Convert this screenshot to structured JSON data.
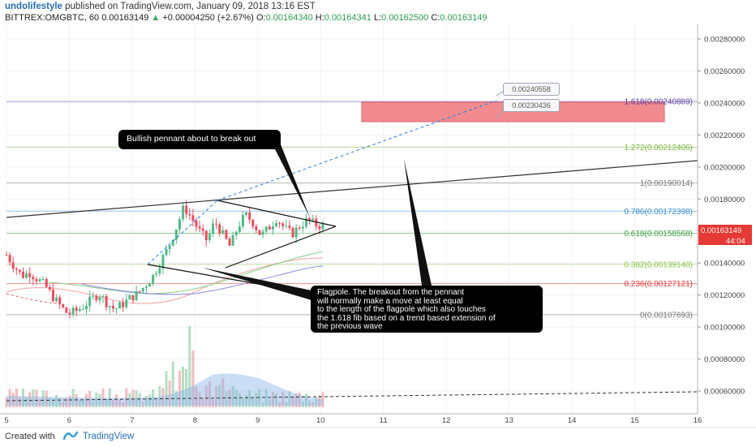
{
  "header": {
    "author": "undolifestyle",
    "published": "published on TradingView.com, January 09, 2018 13:16 EST",
    "symbol": "BITTREX:OMGBTC, 60",
    "price": "0.00163149",
    "change": "+0.00004250 (+2.67%)",
    "o_label": "O:",
    "o_value": "0.00164340",
    "h_label": "H:",
    "h_value": "0.00164341",
    "l_label": "L:",
    "l_value": "0.00162500",
    "c_label": "C:",
    "c_value": "0.00163149"
  },
  "price_axis": {
    "ticks": [
      "0.00280000",
      "0.00260000",
      "0.00240000",
      "0.00220000",
      "0.00200000",
      "0.00180000",
      "0.00160000",
      "0.00140000",
      "0.00120000",
      "0.00100000",
      "0.00080000",
      "0.00060000"
    ],
    "current_price": "0.00163149",
    "countdown": "44:04"
  },
  "time_axis": {
    "ticks": [
      "5",
      "6",
      "7",
      "8",
      "9",
      "10",
      "11",
      "12",
      "13",
      "14",
      "15",
      "16"
    ]
  },
  "fib_levels": [
    {
      "label": "1.618(0.00240889)",
      "color": "#5b3fa0"
    },
    {
      "label": "1.272(0.00212406)",
      "color": "#7cb342"
    },
    {
      "label": "1(0.00190014)",
      "color": "#777777"
    },
    {
      "label": "0.786(0.00172398)",
      "color": "#3b8fd6"
    },
    {
      "label": "0.618(0.00158568)",
      "color": "#43a047"
    },
    {
      "label": "0.382(0.00139140)",
      "color": "#8bc34a"
    },
    {
      "label": "0.236(0.00127121)",
      "color": "#e53935"
    },
    {
      "label": "0(0.00107693)",
      "color": "#777777"
    }
  ],
  "annotations": {
    "pennant": "Bullish pennant about to break out",
    "flagpole": "Flagpole. The breakout from the pennant\nwill normally make a move at least equal\nto the length of the flagpole which also touches\nthe 1.618 fib based on a trend based extension of\nthe previous wave",
    "target_high": "0.00240558",
    "target_low": "0.00230436"
  },
  "footer": {
    "created": "Created with",
    "brand": "TradingView"
  },
  "colors": {
    "up": "#53b987",
    "down": "#eb4d5c",
    "target_zone": "#f28b8f",
    "projection": "#2f7dd6",
    "price_tag": "#e53935"
  },
  "chart_data": {
    "type": "candlestick",
    "symbol": "BITTREX:OMGBTC",
    "interval": "60",
    "ylim": [
      0.00055,
      0.0029
    ],
    "x_dates": [
      "5",
      "6",
      "7",
      "8",
      "9",
      "10",
      "11",
      "12",
      "13",
      "14",
      "15",
      "16"
    ],
    "price_path": [
      0.00145,
      0.00138,
      0.00132,
      0.00134,
      0.0013,
      0.00126,
      0.00119,
      0.00113,
      0.00108,
      0.0011,
      0.00113,
      0.00117,
      0.00121,
      0.00115,
      0.00111,
      0.00114,
      0.00118,
      0.00121,
      0.00126,
      0.00132,
      0.00141,
      0.0015,
      0.00162,
      0.00175,
      0.00168,
      0.0016,
      0.00154,
      0.00166,
      0.00158,
      0.0015,
      0.00163,
      0.0017,
      0.00165,
      0.00157,
      0.00162,
      0.00168,
      0.00162,
      0.00158,
      0.00163,
      0.00167,
      0.00164,
      0.00163
    ],
    "fib_levels": [
      {
        "ratio": 1.618,
        "price": 0.00240889
      },
      {
        "ratio": 1.272,
        "price": 0.00212406
      },
      {
        "ratio": 1,
        "price": 0.00190014
      },
      {
        "ratio": 0.786,
        "price": 0.00172398
      },
      {
        "ratio": 0.618,
        "price": 0.00158568
      },
      {
        "ratio": 0.382,
        "price": 0.0013914
      },
      {
        "ratio": 0.236,
        "price": 0.00127121
      },
      {
        "ratio": 0,
        "price": 0.00107693
      }
    ],
    "target_zone": [
      0.00230436,
      0.00240558
    ],
    "last_price": 0.00163149
  }
}
